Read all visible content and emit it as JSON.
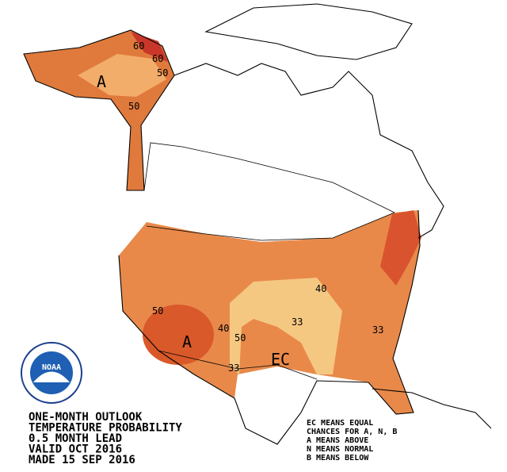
{
  "map": {
    "contour_labels": [
      "60",
      "60",
      "50",
      "50",
      "50",
      "40",
      "40",
      "50",
      "33",
      "33",
      "33"
    ],
    "category_labels": [
      "A",
      "A",
      "EC"
    ],
    "logo": "NOAA",
    "title_lines": [
      "ONE-MONTH OUTLOOK",
      "TEMPERATURE PROBABILITY",
      "0.5 MONTH LEAD",
      "VALID OCT 2016",
      "MADE 15 SEP 2016"
    ],
    "legend_lines": [
      "EC MEANS EQUAL",
      "CHANCES FOR A, N, B",
      "A MEANS ABOVE",
      "N MEANS NORMAL",
      "B MEANS BELOW"
    ]
  }
}
